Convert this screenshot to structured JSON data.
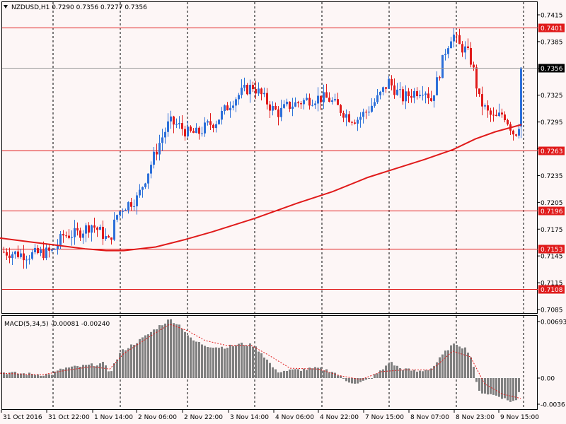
{
  "colors": {
    "background": "#fdf6f6",
    "bull": "#2d6fd9",
    "bear": "#e01b1b",
    "level_line": "#e01b1b",
    "moving_average": "#e01b1b",
    "macd_hist": "#808080",
    "signal": "#e01b1b",
    "grid_vertical": "#000000",
    "text": "#000000"
  },
  "icons": [
    "dropdown-triangle-icon"
  ],
  "chart_data": {
    "type": "candlestick",
    "price_panel": {
      "title": "NZDUSD,H1  0.7290 0.7356 0.7277 0.7356",
      "symbol": "NZDUSD",
      "timeframe": "H1",
      "ohlc": {
        "open": "0.7290",
        "high": "0.7356",
        "low": "0.7277",
        "close": "0.7356"
      },
      "ylim": [
        0.707,
        0.744
      ],
      "y_ticks": [
        "0.7415",
        "0.7385",
        "0.7355",
        "0.7325",
        "0.7295",
        "0.7265",
        "0.7235",
        "0.7205",
        "0.7175",
        "0.7145",
        "0.7115",
        "0.7085"
      ],
      "levels": [
        "0.7401",
        "0.7263",
        "0.7196",
        "0.7153",
        "0.7108"
      ],
      "current_price": "0.7356",
      "moving_average": [
        [
          0,
          0.7165
        ],
        [
          40,
          0.7161
        ],
        [
          80,
          0.7157
        ],
        [
          120,
          0.7153
        ],
        [
          150,
          0.7151
        ],
        [
          175,
          0.7151
        ],
        [
          220,
          0.7155
        ],
        [
          260,
          0.7163
        ],
        [
          300,
          0.7172
        ],
        [
          360,
          0.7187
        ],
        [
          420,
          0.7204
        ],
        [
          470,
          0.7217
        ],
        [
          520,
          0.7233
        ],
        [
          560,
          0.7243
        ],
        [
          600,
          0.7253
        ],
        [
          640,
          0.7264
        ],
        [
          672,
          0.7276
        ],
        [
          700,
          0.7284
        ],
        [
          737,
          0.7292
        ]
      ],
      "waypoints": [
        [
          0,
          0.715
        ],
        [
          40,
          0.7146
        ],
        [
          75,
          0.715
        ],
        [
          90,
          0.7168
        ],
        [
          110,
          0.717
        ],
        [
          130,
          0.718
        ],
        [
          145,
          0.717
        ],
        [
          155,
          0.716
        ],
        [
          165,
          0.719
        ],
        [
          175,
          0.72
        ],
        [
          195,
          0.721
        ],
        [
          210,
          0.724
        ],
        [
          225,
          0.727
        ],
        [
          240,
          0.7295
        ],
        [
          255,
          0.729
        ],
        [
          265,
          0.7283
        ],
        [
          280,
          0.7282
        ],
        [
          295,
          0.7292
        ],
        [
          305,
          0.7295
        ],
        [
          315,
          0.7305
        ],
        [
          330,
          0.732
        ],
        [
          345,
          0.733
        ],
        [
          358,
          0.7335
        ],
        [
          370,
          0.7325
        ],
        [
          385,
          0.731
        ],
        [
          395,
          0.7305
        ],
        [
          405,
          0.7312
        ],
        [
          420,
          0.7316
        ],
        [
          435,
          0.732
        ],
        [
          450,
          0.7322
        ],
        [
          465,
          0.7321
        ],
        [
          480,
          0.731
        ],
        [
          495,
          0.73
        ],
        [
          505,
          0.7298
        ],
        [
          520,
          0.7308
        ],
        [
          535,
          0.7322
        ],
        [
          550,
          0.734
        ],
        [
          560,
          0.733
        ],
        [
          570,
          0.7322
        ],
        [
          585,
          0.7328
        ],
        [
          600,
          0.7333
        ],
        [
          610,
          0.732
        ],
        [
          620,
          0.7345
        ],
        [
          630,
          0.7375
        ],
        [
          640,
          0.7395
        ],
        [
          650,
          0.738
        ],
        [
          660,
          0.7375
        ],
        [
          668,
          0.736
        ],
        [
          678,
          0.732
        ],
        [
          690,
          0.7305
        ],
        [
          700,
          0.7298
        ],
        [
          712,
          0.7305
        ],
        [
          722,
          0.729
        ],
        [
          728,
          0.728
        ],
        [
          735,
          0.7295
        ]
      ]
    },
    "macd_panel": {
      "title": "MACD(5,34,5) -0.00081 -0.00240",
      "y_ticks": [
        "0.00693",
        "0.00",
        "-0.0036"
      ],
      "ylim": [
        -0.0036,
        0.00693
      ],
      "histogram_waypoints": [
        [
          0,
          0.0007
        ],
        [
          40,
          0.0005
        ],
        [
          70,
          0.0004
        ],
        [
          90,
          0.0012
        ],
        [
          120,
          0.0015
        ],
        [
          145,
          0.0018
        ],
        [
          155,
          0.0007
        ],
        [
          170,
          0.0032
        ],
        [
          200,
          0.0048
        ],
        [
          225,
          0.0064
        ],
        [
          240,
          0.0072
        ],
        [
          255,
          0.0064
        ],
        [
          270,
          0.0047
        ],
        [
          290,
          0.004
        ],
        [
          305,
          0.0038
        ],
        [
          320,
          0.0038
        ],
        [
          340,
          0.0042
        ],
        [
          358,
          0.004
        ],
        [
          370,
          0.003
        ],
        [
          390,
          0.0008
        ],
        [
          420,
          0.001
        ],
        [
          450,
          0.0012
        ],
        [
          470,
          0.0008
        ],
        [
          490,
          -0.0004
        ],
        [
          505,
          -0.0008
        ],
        [
          520,
          -0.0002
        ],
        [
          540,
          0.001
        ],
        [
          550,
          0.002
        ],
        [
          565,
          0.0012
        ],
        [
          590,
          0.0008
        ],
        [
          610,
          0.0012
        ],
        [
          625,
          0.0028
        ],
        [
          635,
          0.0038
        ],
        [
          645,
          0.0042
        ],
        [
          660,
          0.0035
        ],
        [
          668,
          0.002
        ],
        [
          675,
          -0.0018
        ],
        [
          690,
          -0.0022
        ],
        [
          705,
          -0.0025
        ],
        [
          720,
          -0.0032
        ],
        [
          730,
          -0.0031
        ],
        [
          736,
          -0.0008
        ]
      ],
      "signal_waypoints": [
        [
          0,
          0.0006
        ],
        [
          60,
          0.0004
        ],
        [
          90,
          0.0009
        ],
        [
          130,
          0.0014
        ],
        [
          155,
          0.0011
        ],
        [
          175,
          0.003
        ],
        [
          210,
          0.005
        ],
        [
          240,
          0.0066
        ],
        [
          265,
          0.0058
        ],
        [
          290,
          0.0046
        ],
        [
          320,
          0.004
        ],
        [
          355,
          0.004
        ],
        [
          380,
          0.0028
        ],
        [
          410,
          0.0012
        ],
        [
          450,
          0.0011
        ],
        [
          480,
          0.0003
        ],
        [
          510,
          -0.0002
        ],
        [
          540,
          0.0008
        ],
        [
          570,
          0.001
        ],
        [
          610,
          0.001
        ],
        [
          640,
          0.0033
        ],
        [
          665,
          0.0026
        ],
        [
          685,
          -0.0008
        ],
        [
          710,
          -0.0022
        ],
        [
          736,
          -0.0028
        ]
      ]
    },
    "x_labels": [
      "31 Oct 2016",
      "31 Oct 22:00",
      "1 Nov 14:00",
      "2 Nov 06:00",
      "2 Nov 22:00",
      "3 Nov 14:00",
      "4 Nov 06:00",
      "4 Nov 22:00",
      "7 Nov 15:00",
      "8 Nov 07:00",
      "8 Nov 23:00",
      "9 Nov 15:00"
    ]
  }
}
